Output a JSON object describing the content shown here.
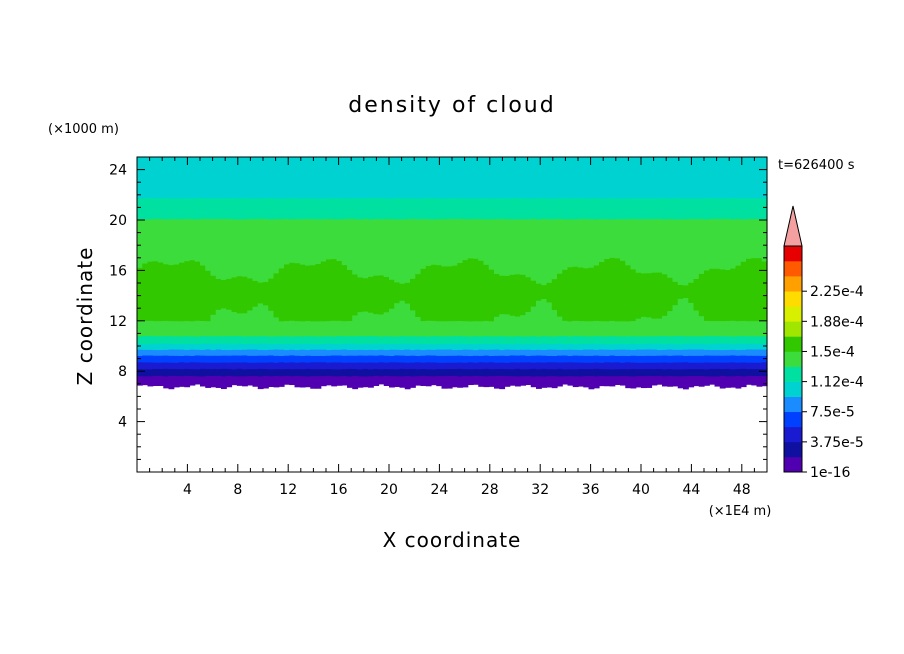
{
  "chart_data": {
    "type": "heatmap",
    "title": "density of cloud",
    "xlabel": "X coordinate",
    "ylabel": "Z coordinate",
    "x_unit": "(×1E4 m)",
    "y_unit": "(×1000 m)",
    "time_label": "t=626400 s",
    "xlim": [
      0,
      50
    ],
    "ylim": [
      0,
      25
    ],
    "x_ticks": [
      "4",
      "8",
      "12",
      "16",
      "20",
      "24",
      "28",
      "32",
      "36",
      "40",
      "44",
      "48"
    ],
    "y_ticks": [
      "4",
      "8",
      "12",
      "16",
      "20",
      "24"
    ],
    "x_tick_values": [
      4,
      8,
      12,
      16,
      20,
      24,
      28,
      32,
      36,
      40,
      44,
      48
    ],
    "y_tick_values": [
      4,
      8,
      12,
      16,
      20,
      24
    ],
    "colorbar": {
      "levels": [
        1e-16,
        1.875e-05,
        3.75e-05,
        5.625e-05,
        7.5e-05,
        9.375e-05,
        0.0001125,
        0.00013125,
        0.00015,
        0.00016875,
        0.0001875,
        0.00020625,
        0.000225,
        0.00024375
      ],
      "labels": [
        "1e-16",
        "3.75e-5",
        "7.5e-5",
        "1.12e-4",
        "1.5e-4",
        "1.88e-4",
        "2.25e-4"
      ],
      "label_levels": [
        1e-16,
        3.75e-05,
        7.5e-05,
        0.0001125,
        0.00015,
        0.0001875,
        0.000225
      ],
      "colors": [
        "#5000b0",
        "#1010a0",
        "#1a1ad0",
        "#0040ff",
        "#1a8cff",
        "#00d2d2",
        "#00e0a0",
        "#3cdc3c",
        "#32c800",
        "#a0e600",
        "#d8f000",
        "#ffdc00",
        "#ffa000",
        "#ff5a00",
        "#e60000"
      ],
      "over_color": "#f4a0a0",
      "extend": "max"
    },
    "vertical_profile": {
      "z": [
        6.8,
        7.5,
        8.0,
        8.5,
        9.0,
        9.5,
        10.0,
        10.5,
        11.2,
        12.0,
        13.0,
        14.5,
        16.0,
        17.5,
        18.5,
        19.5,
        20.5,
        21.5,
        22.5,
        23.5,
        24.5,
        25.0
      ],
      "density": [
        2e-06,
        1.5e-05,
        3e-05,
        5e-05,
        6.5e-05,
        8.5e-05,
        0.000105,
        0.000125,
        0.00014,
        0.00015,
        0.000155,
        0.00016,
        0.00015,
        0.00014,
        0.000135,
        0.00014,
        0.000125,
        0.000115,
        0.000105,
        0.0001,
        0.0001,
        0.000105
      ]
    },
    "cloud_base_z": 6.8,
    "grid": false
  }
}
